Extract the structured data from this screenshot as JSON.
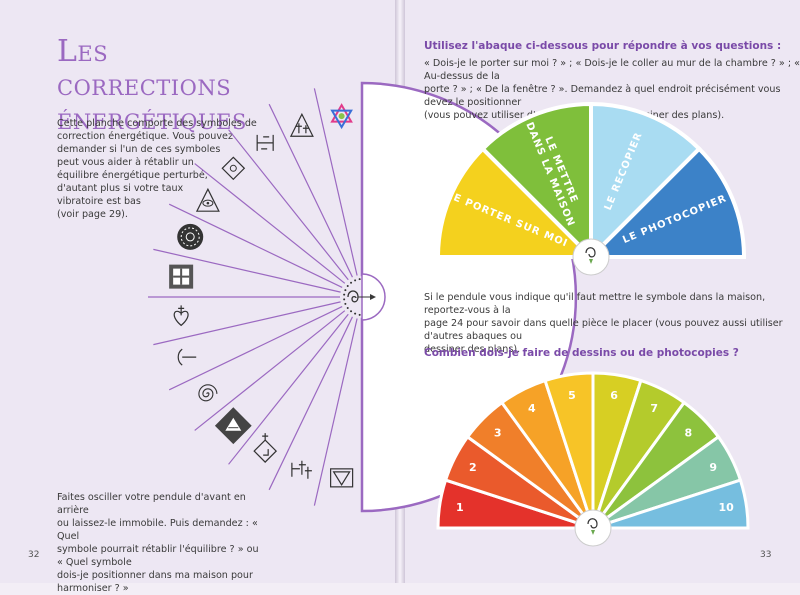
{
  "left_page": {
    "title_line1": "Les corrections",
    "title_line2": "énergétiques",
    "intro_lines": [
      "Cette planche comporte des symboles de",
      "correction énergétique. Vous pouvez",
      "demander si l'un de ces symboles",
      "peut vous aider à rétablir un",
      "équilibre énergétique perturbé,",
      "d'autant plus si votre taux",
      "vibratoire est bas",
      "(voir page 29)."
    ],
    "outro_lines": [
      "Faites osciller votre pendule d'avant en arrière",
      "ou laissez-le immobile. Puis demandez : « Quel",
      "symbole pourrait rétablir l'équilibre ? » ou « Quel symbole",
      "dois-je positionner dans ma maison pour harmoniser ? »"
    ],
    "page_number": "32",
    "symbols": [
      "star-of-david-icon",
      "crosses-triangle-icon",
      "runic-glyph-icon",
      "diamond-knot-icon",
      "triangle-eye-icon",
      "mandala-disc-icon",
      "square-grid-icon",
      "heart-cross-icon",
      "arc-icon",
      "spiral-icon",
      "pyramid-sun-icon",
      "diamond-cross-icon",
      "rune-signs-icon",
      "triangle-icon"
    ],
    "fan_stroke_color": "#9b69c1"
  },
  "right_page": {
    "heading1": "Utilisez l'abaque ci-dessous pour répondre à vos questions :",
    "questions_lines": [
      "« Dois-je le porter sur moi ? » ; « Dois-je le coller au mur de la chambre ? » ; « Au-dessus de la",
      "porte ? » ; « De la fenêtre ? ». Demandez à quel endroit précisément vous devez le positionner",
      "(vous pouvez utiliser d'autres abaques ou dessiner des plans)."
    ],
    "abaque1": [
      {
        "label": "Le porter sur moi",
        "color": "#f4d11e"
      },
      {
        "label_lines": [
          "Le mettre",
          "dans la maison"
        ],
        "color": "#7fbf3b"
      },
      {
        "label": "Le recopier",
        "color": "#a9dcf2"
      },
      {
        "label": "Le photocopier",
        "color": "#3c82c8"
      }
    ],
    "middle_lines": [
      "Si le pendule vous indique qu'il faut mettre le symbole dans la maison, reportez-vous à la",
      "page 24 pour savoir dans quelle pièce le placer (vous pouvez aussi utiliser d'autres abaques ou",
      "dessiner des plans)."
    ],
    "heading2": "Combien dois-je faire de dessins ou de photocopies ?",
    "abaque2": [
      {
        "label": "1",
        "color": "#e4322b"
      },
      {
        "label": "2",
        "color": "#ea5a2c"
      },
      {
        "label": "3",
        "color": "#f07f2a"
      },
      {
        "label": "4",
        "color": "#f6a227"
      },
      {
        "label": "5",
        "color": "#f7c427"
      },
      {
        "label": "6",
        "color": "#d7cf23"
      },
      {
        "label": "7",
        "color": "#b4cb2c"
      },
      {
        "label": "8",
        "color": "#8dc23d"
      },
      {
        "label": "9",
        "color": "#86c6a7"
      },
      {
        "label": "10",
        "color": "#76bedf"
      }
    ],
    "page_number": "33"
  }
}
